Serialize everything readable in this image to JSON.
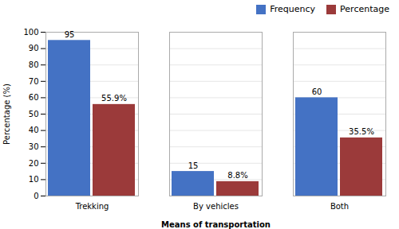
{
  "chart_data": {
    "type": "bar",
    "xlabel": "Means of transportation",
    "ylabel": "Percentage (%)",
    "categories": [
      "Trekking",
      "By vehicles",
      "Both"
    ],
    "series": [
      {
        "name": "Frequency",
        "color": "#4472C4",
        "values": [
          95,
          15,
          60
        ],
        "value_labels": [
          "95",
          "15",
          "60"
        ]
      },
      {
        "name": "Percentage",
        "color": "#9B3A3A",
        "values": [
          55.9,
          8.8,
          35.5
        ],
        "value_labels": [
          "55.9%",
          "8.8%",
          "35.5%"
        ]
      }
    ],
    "ylim": [
      0,
      100
    ],
    "yticks": [
      0,
      10,
      20,
      30,
      40,
      50,
      60,
      70,
      80,
      90,
      100
    ],
    "grid": true,
    "legend": "upper right",
    "data_labels": true
  }
}
